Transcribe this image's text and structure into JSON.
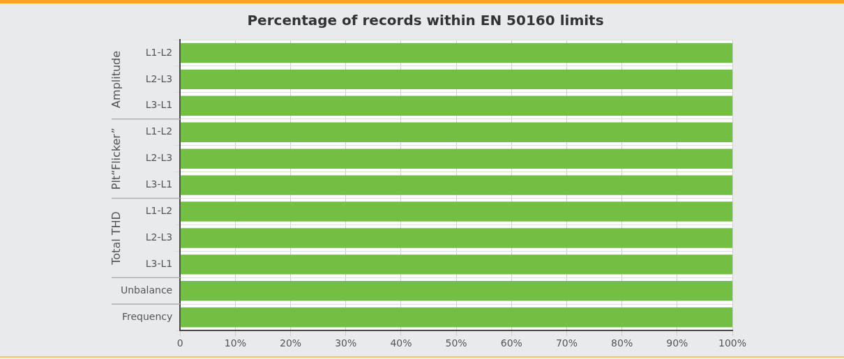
{
  "chart_data": {
    "type": "bar",
    "orientation": "horizontal",
    "title": "Percentage of records within EN 50160 limits",
    "categories": [
      "L1-L2",
      "L2-L3",
      "L3-L1",
      "L1-L2",
      "L2-L3",
      "L3-L1",
      "L1-L2",
      "L2-L3",
      "L3-L1",
      "Unbalance",
      "Frequency"
    ],
    "values": [
      100,
      100,
      100,
      100,
      100,
      100,
      100,
      100,
      100,
      100,
      100
    ],
    "color": "#72bf44",
    "xlim": [
      0,
      100
    ],
    "xticks": [
      0,
      {
        "value": 10,
        "label": "10%"
      },
      {
        "value": 20,
        "label": "20%"
      },
      {
        "value": 30,
        "label": "30%"
      },
      {
        "value": 40,
        "label": "40%"
      },
      {
        "value": 50,
        "label": "50%"
      },
      {
        "value": 60,
        "label": "60%"
      },
      {
        "value": 70,
        "label": "70%"
      },
      {
        "value": 80,
        "label": "80%"
      },
      {
        "value": 90,
        "label": "90%"
      },
      {
        "value": 100,
        "label": "100%"
      }
    ],
    "grid": true,
    "annotations": [
      "Amplitude",
      "Plt“Flicker”",
      "Total THD"
    ]
  }
}
